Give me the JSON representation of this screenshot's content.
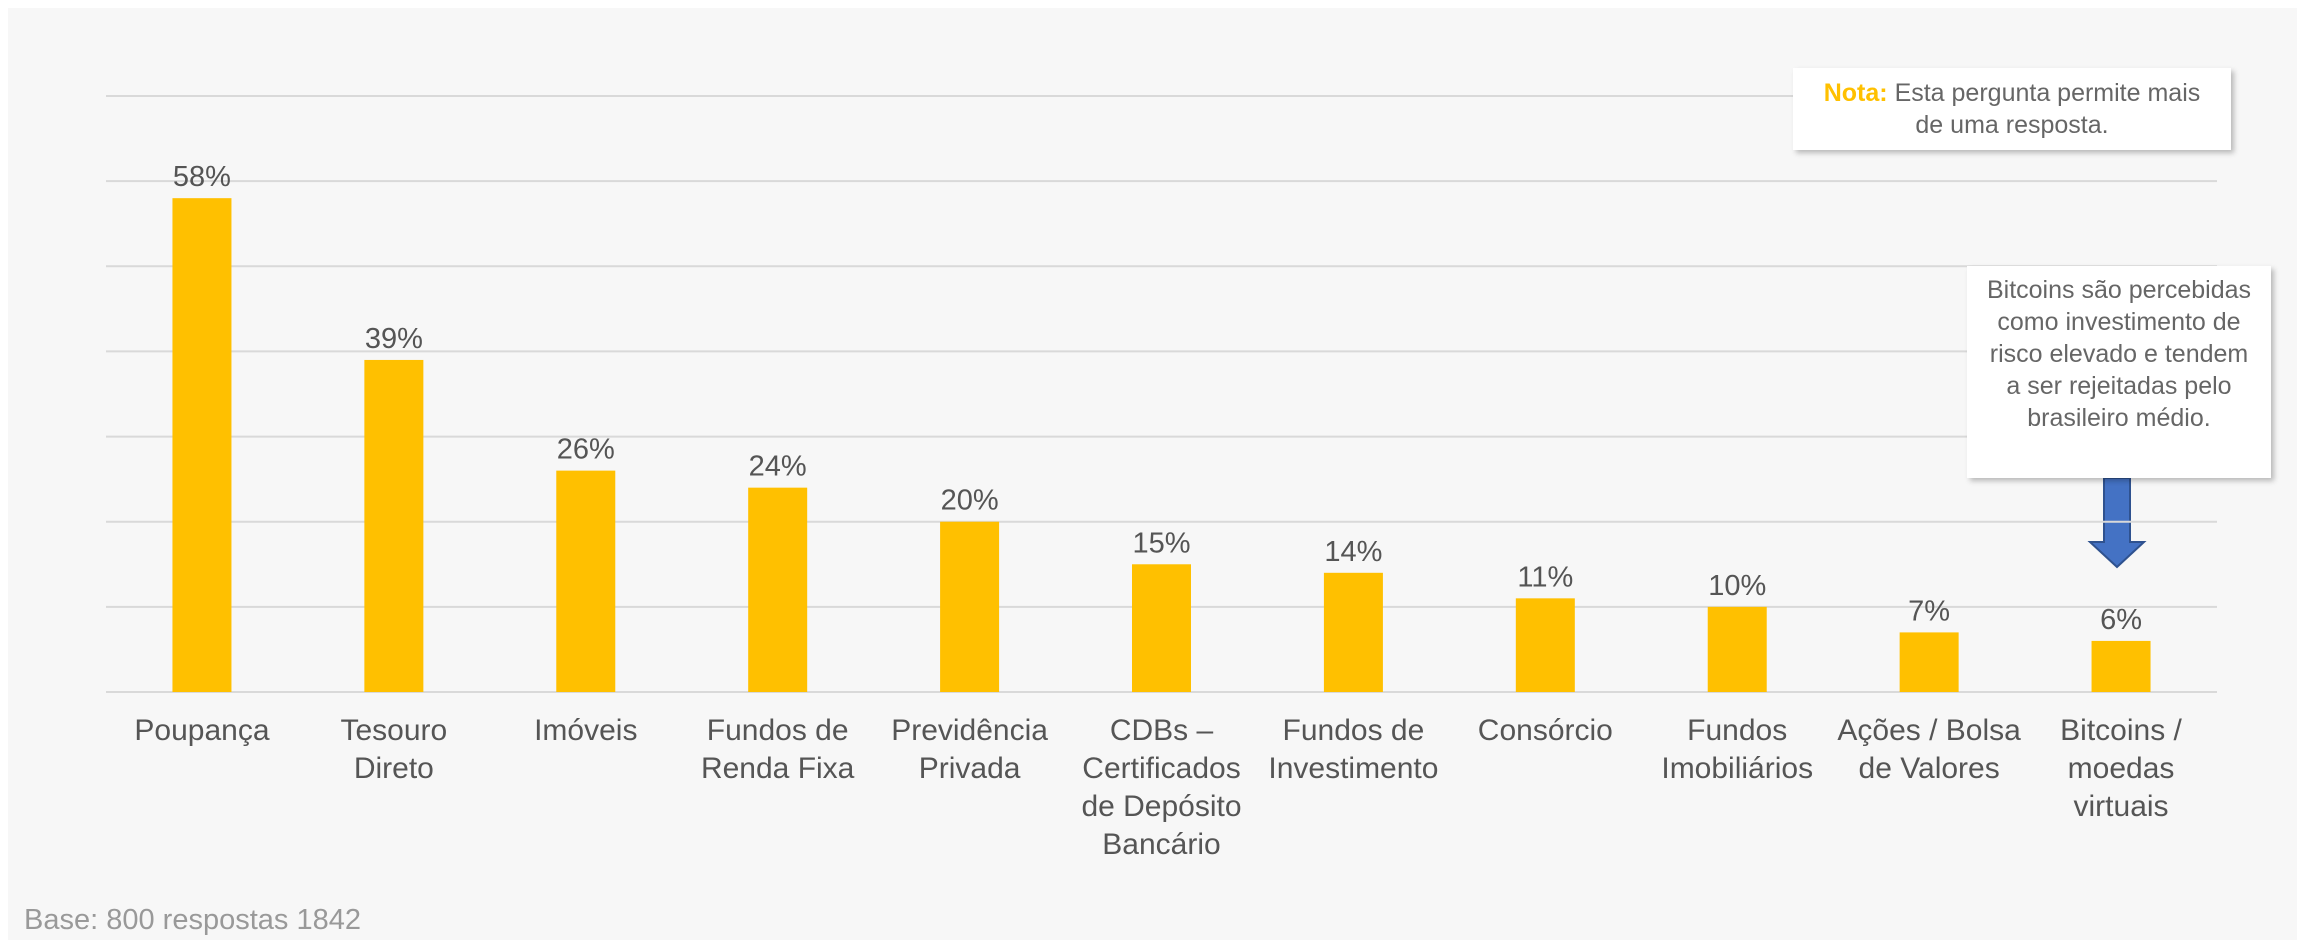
{
  "chart_data": {
    "type": "bar",
    "categories": [
      "Poupança",
      "Tesouro Direto",
      "Imóveis",
      "Fundos de Renda Fixa",
      "Previdência Privada",
      "CDBs – Certificados de Depósito Bancário",
      "Fundos de Investimento",
      "Consórcio",
      "Fundos Imobiliários",
      "Ações / Bolsa de Valores",
      "Bitcoins / moedas virtuais"
    ],
    "values": [
      58,
      39,
      26,
      24,
      20,
      15,
      14,
      11,
      10,
      7,
      6
    ],
    "value_labels": [
      "58%",
      "39%",
      "26%",
      "24%",
      "20%",
      "15%",
      "14%",
      "11%",
      "10%",
      "7%",
      "6%"
    ],
    "color": "#ffc000",
    "ylim": [
      0,
      70
    ],
    "yticks": [
      0,
      10,
      20,
      30,
      40,
      50,
      60,
      70
    ],
    "grid": true,
    "note": {
      "label": "Nota:",
      "text": "Esta pergunta permite mais de uma resposta."
    },
    "annotation": "Bitcoins são percebidas como investimento de risco elevado e tendem a ser rejeitadas pelo brasileiro médio.",
    "footer": "Base: 800 respostas 1842"
  }
}
